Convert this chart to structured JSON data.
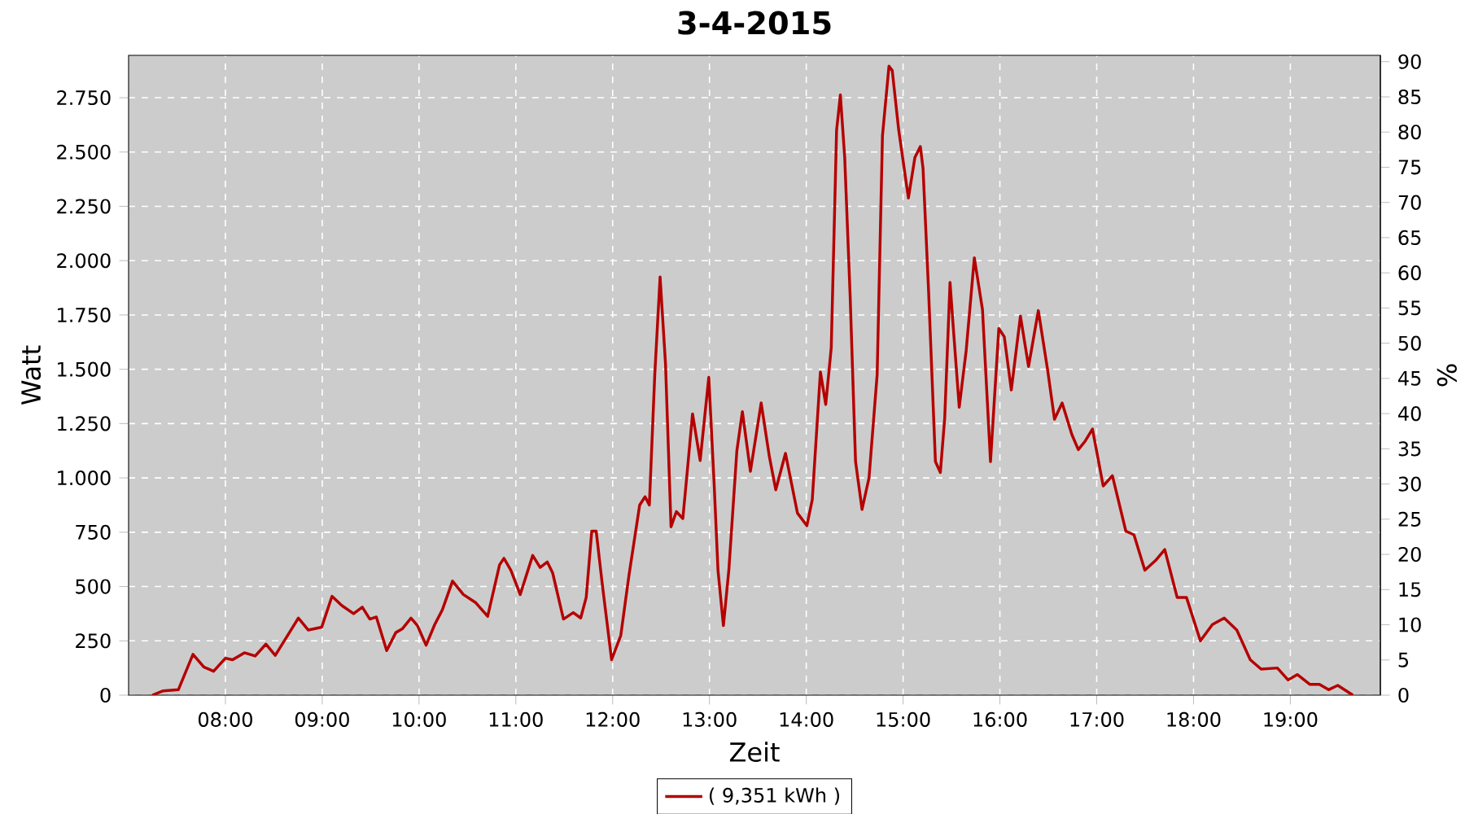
{
  "chart_data": {
    "type": "line",
    "title": "3-4-2015",
    "xlabel": "Zeit",
    "ylabel": "Watt",
    "y2label": "%",
    "x": [
      7.245,
      7.358,
      7.514,
      7.665,
      7.777,
      7.878,
      8.0,
      8.074,
      8.196,
      8.308,
      8.419,
      8.515,
      8.754,
      8.855,
      8.995,
      9.101,
      9.201,
      9.324,
      9.414,
      9.492,
      9.559,
      9.666,
      9.76,
      9.827,
      9.917,
      9.984,
      10.073,
      10.162,
      10.241,
      10.346,
      10.458,
      10.587,
      10.709,
      10.832,
      10.877,
      10.949,
      11.045,
      11.174,
      11.251,
      11.325,
      11.38,
      11.492,
      11.593,
      11.67,
      11.727,
      11.784,
      11.83,
      11.889,
      11.989,
      12.084,
      12.168,
      12.279,
      12.335,
      12.379,
      12.435,
      12.49,
      12.546,
      12.603,
      12.658,
      12.725,
      12.78,
      12.825,
      12.904,
      12.993,
      13.048,
      13.088,
      13.144,
      13.2,
      13.283,
      13.34,
      13.423,
      13.534,
      13.618,
      13.685,
      13.785,
      13.909,
      14.006,
      14.062,
      14.146,
      14.201,
      14.258,
      14.313,
      14.352,
      14.397,
      14.453,
      14.509,
      14.576,
      14.648,
      14.732,
      14.787,
      14.854,
      14.888,
      14.955,
      15.055,
      15.122,
      15.178,
      15.206,
      15.262,
      15.334,
      15.385,
      15.43,
      15.485,
      15.513,
      15.58,
      15.652,
      15.736,
      15.82,
      15.903,
      15.989,
      16.045,
      16.118,
      16.212,
      16.296,
      16.397,
      16.492,
      16.564,
      16.643,
      16.743,
      16.81,
      16.882,
      16.956,
      17.067,
      17.162,
      17.301,
      17.385,
      17.497,
      17.608,
      17.703,
      17.831,
      17.927,
      18.071,
      18.195,
      18.317,
      18.447,
      18.586,
      18.698,
      18.866,
      18.977,
      19.072,
      19.2,
      19.301,
      19.395,
      19.49,
      19.646
    ],
    "series": [
      {
        "name": "( 9,351 kWh )",
        "color": "#b50000",
        "values": [
          0,
          20,
          25,
          188,
          130,
          110,
          170,
          163,
          195,
          180,
          235,
          183,
          355,
          300,
          313,
          455,
          413,
          375,
          405,
          350,
          360,
          205,
          288,
          305,
          355,
          320,
          230,
          325,
          393,
          525,
          463,
          425,
          363,
          600,
          630,
          575,
          463,
          643,
          588,
          613,
          563,
          350,
          380,
          355,
          450,
          755,
          755,
          525,
          163,
          275,
          550,
          875,
          913,
          875,
          1475,
          1925,
          1525,
          775,
          845,
          813,
          1075,
          1295,
          1080,
          1463,
          975,
          575,
          320,
          575,
          1125,
          1305,
          1030,
          1345,
          1100,
          945,
          1113,
          838,
          780,
          900,
          1488,
          1338,
          1600,
          2600,
          2763,
          2475,
          1838,
          1075,
          855,
          1000,
          1475,
          2575,
          2895,
          2875,
          2600,
          2288,
          2475,
          2525,
          2425,
          1875,
          1075,
          1025,
          1275,
          1900,
          1725,
          1325,
          1588,
          2013,
          1775,
          1075,
          1688,
          1650,
          1405,
          1745,
          1513,
          1770,
          1500,
          1270,
          1345,
          1200,
          1130,
          1170,
          1225,
          963,
          1010,
          755,
          738,
          575,
          620,
          670,
          450,
          450,
          250,
          325,
          355,
          300,
          163,
          120,
          125,
          70,
          95,
          50,
          50,
          25,
          45,
          0
        ]
      }
    ],
    "xlim": [
      7.0,
      19.93
    ],
    "ylim": [
      0,
      2945
    ],
    "y2lim": [
      0,
      90.9
    ],
    "xticks": [
      {
        "value": 8,
        "label": "08:00"
      },
      {
        "value": 9,
        "label": "09:00"
      },
      {
        "value": 10,
        "label": "10:00"
      },
      {
        "value": 11,
        "label": "11:00"
      },
      {
        "value": 12,
        "label": "12:00"
      },
      {
        "value": 13,
        "label": "13:00"
      },
      {
        "value": 14,
        "label": "14:00"
      },
      {
        "value": 15,
        "label": "15:00"
      },
      {
        "value": 16,
        "label": "16:00"
      },
      {
        "value": 17,
        "label": "17:00"
      },
      {
        "value": 18,
        "label": "18:00"
      },
      {
        "value": 19,
        "label": "19:00"
      }
    ],
    "yticks": [
      0,
      250,
      500,
      750,
      {
        "value": 1000,
        "label": "1.000"
      },
      {
        "value": 1250,
        "label": "1.250"
      },
      {
        "value": 1500,
        "label": "1.500"
      },
      {
        "value": 1750,
        "label": "1.750"
      },
      {
        "value": 2000,
        "label": "2.000"
      },
      {
        "value": 2250,
        "label": "2.250"
      },
      {
        "value": 2500,
        "label": "2.500"
      },
      {
        "value": 2750,
        "label": "2.750"
      }
    ],
    "y2ticks": [
      0,
      5,
      10,
      15,
      20,
      25,
      30,
      35,
      40,
      45,
      50,
      55,
      60,
      65,
      70,
      75,
      80,
      85,
      90
    ],
    "grid": true,
    "legend": "bottom",
    "marker": "none",
    "line_style": "solid"
  }
}
